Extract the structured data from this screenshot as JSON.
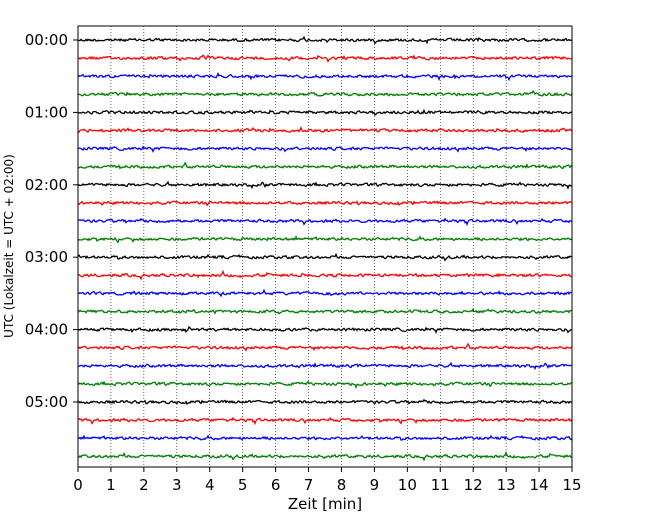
{
  "chart_data": {
    "type": "line",
    "title": "",
    "xlabel": "Zeit  [min]",
    "ylabel": "UTC (Lokalzeit = UTC + 02:00)",
    "xlim": [
      0,
      15
    ],
    "x_ticks": [
      "0",
      "1",
      "2",
      "3",
      "4",
      "5",
      "6",
      "7",
      "8",
      "9",
      "10",
      "11",
      "12",
      "13",
      "14",
      "15"
    ],
    "y_tick_labels": [
      "00:00",
      "01:00",
      "02:00",
      "03:00",
      "04:00",
      "05:00"
    ],
    "rows_per_hour": 4,
    "row_interval_minutes": 15,
    "row_count": 24,
    "trace_colors": [
      "#000000",
      "#ff0000",
      "#0000ff",
      "#007f00"
    ],
    "grid": "vertical dotted lines at each minute"
  }
}
